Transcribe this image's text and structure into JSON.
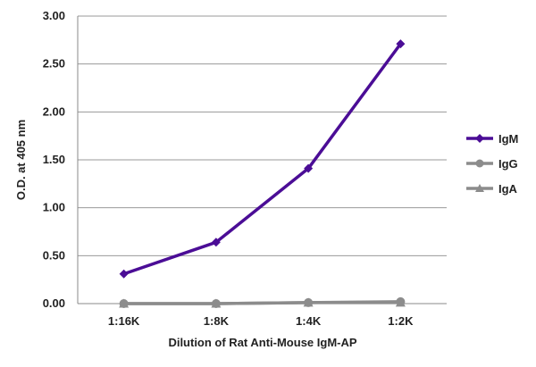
{
  "chart_data": {
    "type": "line",
    "title": "",
    "xlabel": "Dilution of Rat Anti-Mouse IgM-AP",
    "ylabel": "O.D. at 405 nm",
    "categories": [
      "1:16K",
      "1:8K",
      "1:4K",
      "1:2K"
    ],
    "y_ticks": [
      "0.00",
      "0.50",
      "1.00",
      "1.50",
      "2.00",
      "2.50",
      "3.00"
    ],
    "ylim": [
      0,
      3
    ],
    "grid": "horizontal",
    "legend_position": "right",
    "series": [
      {
        "name": "IgM",
        "values": [
          0.31,
          0.64,
          1.41,
          2.71
        ],
        "color": "#4b0d96",
        "marker": "diamond"
      },
      {
        "name": "IgG",
        "values": [
          0.0,
          0.0,
          0.01,
          0.02
        ],
        "color": "#8c8c8c",
        "marker": "circle"
      },
      {
        "name": "IgA",
        "values": [
          0.0,
          0.0,
          0.01,
          0.01
        ],
        "color": "#8c8c8c",
        "marker": "triangle"
      }
    ]
  }
}
